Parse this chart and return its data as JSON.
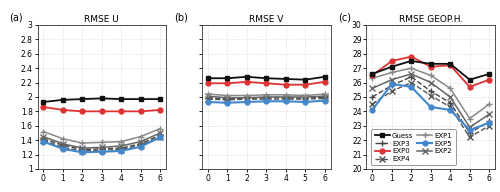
{
  "x": [
    0,
    1,
    2,
    3,
    4,
    5,
    6
  ],
  "panels": [
    {
      "title": "RMSE U",
      "label": "(a)",
      "ylim": [
        1.0,
        3.0
      ],
      "yticks": [
        1.0,
        1.2,
        1.4,
        1.6,
        1.8,
        2.0,
        2.2,
        2.4,
        2.6,
        2.8,
        3.0
      ],
      "yticklabels": [
        "1",
        "1.2",
        "1.4",
        "1.6",
        "1.8",
        "2",
        "2.2",
        "2.4",
        "2.6",
        "2.8",
        "3"
      ],
      "show_yticks": true,
      "series": {
        "Guess": [
          1.93,
          1.96,
          1.97,
          1.98,
          1.97,
          1.97,
          1.97
        ],
        "EXP0": [
          1.86,
          1.82,
          1.8,
          1.8,
          1.8,
          1.8,
          1.82
        ],
        "EXP1": [
          1.52,
          1.42,
          1.36,
          1.37,
          1.38,
          1.45,
          1.56
        ],
        "EXP2": [
          1.45,
          1.35,
          1.29,
          1.3,
          1.32,
          1.38,
          1.5
        ],
        "EXP3": [
          1.42,
          1.33,
          1.27,
          1.28,
          1.29,
          1.35,
          1.47
        ],
        "EXP4": [
          1.4,
          1.3,
          1.25,
          1.26,
          1.27,
          1.33,
          1.45
        ],
        "EXP5": [
          1.38,
          1.28,
          1.23,
          1.24,
          1.25,
          1.31,
          1.44
        ]
      }
    },
    {
      "title": "RMSE V",
      "label": "(b)",
      "ylim": [
        1.0,
        3.0
      ],
      "yticks": [
        1.0,
        1.2,
        1.4,
        1.6,
        1.8,
        2.0,
        2.2,
        2.4,
        2.6,
        2.8,
        3.0
      ],
      "yticklabels": [
        "1",
        "1.2",
        "1.4",
        "1.6",
        "1.8",
        "2",
        "2.2",
        "2.4",
        "2.6",
        "2.8",
        "3"
      ],
      "show_yticks": false,
      "series": {
        "Guess": [
          2.26,
          2.26,
          2.28,
          2.26,
          2.25,
          2.24,
          2.28
        ],
        "EXP0": [
          2.19,
          2.19,
          2.21,
          2.19,
          2.17,
          2.17,
          2.21
        ],
        "EXP1": [
          2.04,
          2.02,
          2.02,
          2.03,
          2.03,
          2.02,
          2.04
        ],
        "EXP2": [
          2.01,
          1.99,
          1.99,
          2.0,
          2.0,
          2.0,
          2.01
        ],
        "EXP3": [
          1.99,
          1.97,
          1.98,
          1.99,
          1.99,
          1.98,
          2.0
        ],
        "EXP4": [
          1.97,
          1.96,
          1.97,
          1.97,
          1.97,
          1.97,
          1.98
        ],
        "EXP5": [
          1.93,
          1.92,
          1.93,
          1.94,
          1.94,
          1.93,
          1.95
        ]
      }
    },
    {
      "title": "RMSE GEOP.H.",
      "label": "(c)",
      "ylim": [
        20.0,
        30.0
      ],
      "yticks": [
        20,
        21,
        22,
        23,
        24,
        25,
        26,
        27,
        28,
        29,
        30
      ],
      "yticklabels": [
        "20",
        "21",
        "22",
        "23",
        "24",
        "25",
        "26",
        "27",
        "28",
        "29",
        "30"
      ],
      "show_yticks": true,
      "series": {
        "Guess": [
          26.6,
          27.1,
          27.5,
          27.3,
          27.3,
          26.2,
          26.6
        ],
        "EXP0": [
          26.5,
          27.5,
          27.8,
          27.1,
          27.2,
          25.7,
          26.2
        ],
        "EXP1": [
          26.3,
          26.7,
          27.0,
          26.5,
          25.6,
          23.5,
          24.5
        ],
        "EXP2": [
          25.6,
          26.2,
          26.6,
          26.0,
          25.0,
          22.9,
          23.8
        ],
        "EXP3": [
          25.0,
          25.8,
          26.4,
          25.4,
          24.6,
          22.5,
          23.3
        ],
        "EXP4": [
          24.5,
          25.4,
          26.0,
          25.1,
          24.3,
          22.2,
          23.0
        ],
        "EXP5": [
          24.1,
          25.9,
          25.7,
          24.3,
          24.1,
          22.7,
          23.2
        ]
      }
    }
  ],
  "series_order": [
    "Guess",
    "EXP0",
    "EXP1",
    "EXP2",
    "EXP3",
    "EXP4",
    "EXP5"
  ],
  "series_styles": {
    "Guess": {
      "color": "#111111",
      "marker": "s",
      "ls": "-",
      "lw": 1.3,
      "ms": 3.5,
      "mfc": "#111111",
      "zorder": 10
    },
    "EXP0": {
      "color": "#dd3333",
      "marker": "o",
      "ls": "-",
      "lw": 1.3,
      "ms": 3.5,
      "mfc": "#dd3333",
      "zorder": 9
    },
    "EXP1": {
      "color": "#888888",
      "marker": "+",
      "ls": "-",
      "lw": 1.1,
      "ms": 4.5,
      "mfc": "#888888",
      "zorder": 8
    },
    "EXP2": {
      "color": "#666666",
      "marker": "x",
      "ls": "-",
      "lw": 1.1,
      "ms": 4.0,
      "mfc": "#666666",
      "zorder": 7
    },
    "EXP3": {
      "color": "#444444",
      "marker": "+",
      "ls": "--",
      "lw": 1.0,
      "ms": 4.5,
      "mfc": "#444444",
      "zorder": 6
    },
    "EXP4": {
      "color": "#555555",
      "marker": "x",
      "ls": "--",
      "lw": 1.0,
      "ms": 4.0,
      "mfc": "#555555",
      "zorder": 5
    },
    "EXP5": {
      "color": "#4488cc",
      "marker": "o",
      "ls": "-",
      "lw": 1.5,
      "ms": 3.5,
      "mfc": "#4488cc",
      "zorder": 11
    }
  },
  "legend_order": [
    "Guess",
    "EXP0",
    "EXP1",
    "EXP2",
    "EXP3",
    "EXP4",
    "EXP5"
  ],
  "bg_color": "#ffffff",
  "grid_color": "#cccccc"
}
